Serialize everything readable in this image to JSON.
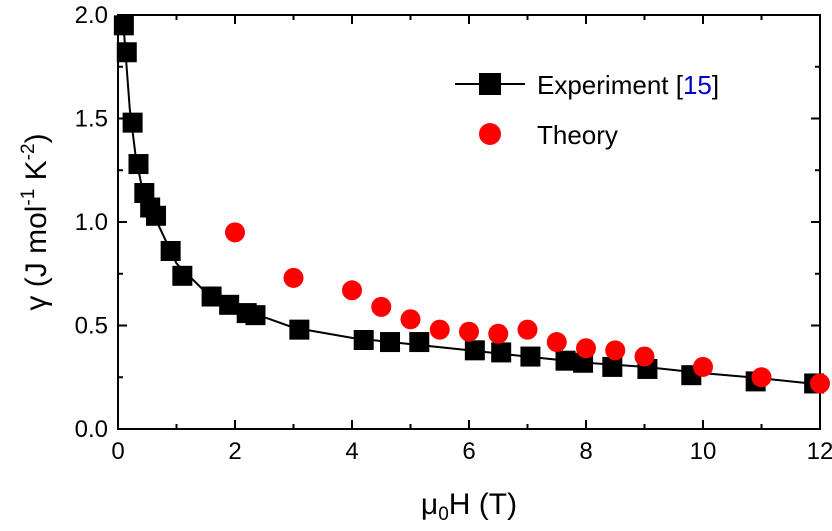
{
  "chart_data": {
    "type": "scatter",
    "xlabel": {
      "prefix": "μ",
      "sub": "0",
      "suffix": "H (T)"
    },
    "ylabel": {
      "main": "γ (J mol",
      "sup1": "-1",
      "mid": " K",
      "sup2": "-2",
      "end": ")"
    },
    "xlim": [
      0,
      12
    ],
    "ylim": [
      0,
      2.0
    ],
    "x_ticks": [
      "0",
      "2",
      "4",
      "6",
      "8",
      "10",
      "12"
    ],
    "y_ticks": [
      "0.0",
      "0.5",
      "1.0",
      "1.5",
      "2.0"
    ],
    "x_tick_values": [
      0,
      2,
      4,
      6,
      8,
      10,
      12
    ],
    "y_tick_values": [
      0,
      0.5,
      1.0,
      1.5,
      2.0
    ],
    "legend_position": "top-right",
    "series": [
      {
        "name": "Experiment",
        "ref": "15",
        "marker": "square",
        "line": true,
        "color": "#000000",
        "ref_color": "#0000CC",
        "x": [
          0.1,
          0.15,
          0.25,
          0.35,
          0.45,
          0.55,
          0.65,
          0.9,
          1.1,
          1.6,
          1.9,
          2.2,
          2.35,
          3.1,
          4.2,
          4.65,
          5.15,
          6.1,
          6.55,
          7.05,
          7.65,
          7.95,
          8.45,
          9.05,
          9.8,
          10.9,
          11.9
        ],
        "y": [
          1.95,
          1.82,
          1.48,
          1.28,
          1.14,
          1.07,
          1.03,
          0.86,
          0.74,
          0.64,
          0.6,
          0.56,
          0.55,
          0.48,
          0.43,
          0.42,
          0.42,
          0.38,
          0.37,
          0.35,
          0.33,
          0.32,
          0.3,
          0.29,
          0.26,
          0.23,
          0.22
        ],
        "curve_x": [
          0.1,
          0.2,
          0.3,
          0.4,
          0.5,
          0.7,
          1.0,
          1.5,
          2.0,
          2.5,
          3.0,
          4.0,
          5.0,
          6.0,
          7.0,
          8.0,
          9.0,
          10.0,
          11.0,
          12.0
        ],
        "curve_y": [
          1.93,
          1.55,
          1.32,
          1.18,
          1.1,
          0.98,
          0.8,
          0.66,
          0.59,
          0.54,
          0.49,
          0.44,
          0.41,
          0.38,
          0.35,
          0.32,
          0.3,
          0.27,
          0.245,
          0.215
        ]
      },
      {
        "name": "Theory",
        "marker": "circle",
        "line": false,
        "color": "#FF0000",
        "x": [
          2,
          3,
          4,
          4.5,
          5,
          5.5,
          6,
          6.5,
          7,
          7.5,
          8,
          8.5,
          9,
          10,
          11,
          12
        ],
        "y": [
          0.95,
          0.73,
          0.67,
          0.59,
          0.53,
          0.48,
          0.47,
          0.46,
          0.48,
          0.42,
          0.39,
          0.38,
          0.35,
          0.3,
          0.25,
          0.22
        ]
      }
    ]
  }
}
